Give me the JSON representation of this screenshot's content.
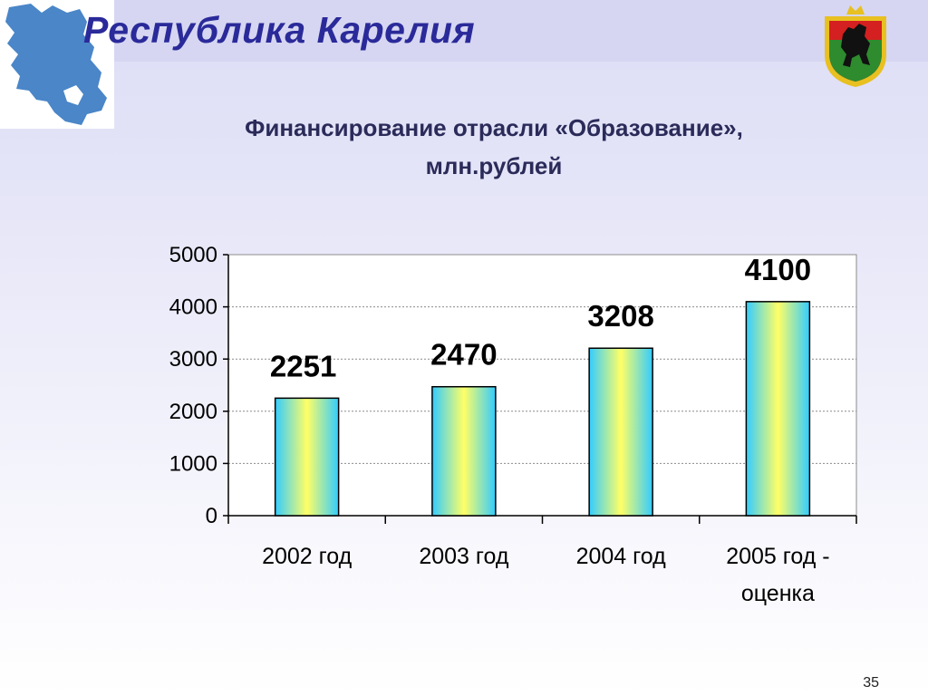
{
  "slide": {
    "title": "Республика Карелия",
    "page_number": "35"
  },
  "icons": {
    "map": "karelia-map-icon",
    "emblem": "karelia-coat-of-arms-icon"
  },
  "colors": {
    "title": "#2a2a9a",
    "bar_edge": "#33ccff",
    "bar_center": "#ffff66",
    "map_fill": "#4a86c8"
  },
  "chart_data": {
    "type": "bar",
    "title_lines": [
      "Финансирование отрасли «Образование»,",
      "млн.рублей"
    ],
    "categories": [
      [
        "2002 год"
      ],
      [
        "2003 год"
      ],
      [
        "2004 год"
      ],
      [
        "2005 год -",
        "оценка"
      ]
    ],
    "values": [
      2251,
      2470,
      3208,
      4100
    ],
    "data_labels": [
      "2251",
      "2470",
      "3208",
      "4100"
    ],
    "ylim": [
      0,
      5000
    ],
    "yticks": [
      0,
      1000,
      2000,
      3000,
      4000,
      5000
    ],
    "grid": true,
    "legend": "none"
  }
}
